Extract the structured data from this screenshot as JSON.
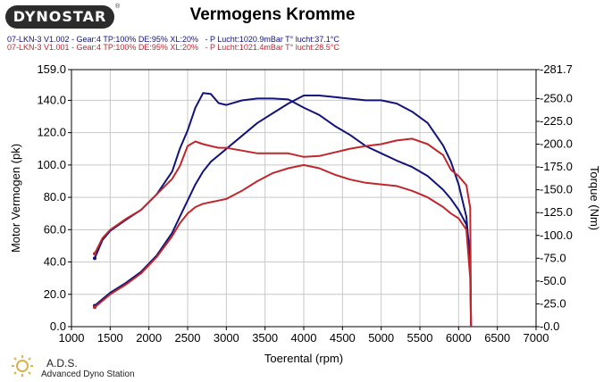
{
  "header": {
    "logo_text": "DYNOSTAR",
    "title": "Vermogens Kromme",
    "runs": [
      "07-LKN-3 V1.002 - Gear:4 TP:100% DE:95% XL:20%   - P Lucht:1020.9mBar T° lucht:37.1°C",
      "07-LKN-3 V1.001 - Gear:4 TP:100% DE:95% XL:20%   - P Lucht:1021.4mBar T° lucht:28.5°C"
    ]
  },
  "footer": {
    "brand": "A.D.S.",
    "subtitle": "Advanced Dyno Station"
  },
  "colors": {
    "run_blue": "#13137a",
    "run_red": "#c0272d",
    "grid": "#c8c8c8"
  },
  "chart_data": {
    "type": "line",
    "title": "Vermogens Kromme",
    "xlabel": "Toerental (rpm)",
    "ylabel": "Motor Vermogen (pk)",
    "y2label": "Torque (Nm)",
    "xlim": [
      1000,
      7000
    ],
    "ylim": [
      0,
      159
    ],
    "y2lim": [
      0,
      281.7
    ],
    "xticks": [
      1000,
      1500,
      2000,
      2500,
      3000,
      3500,
      4000,
      4500,
      5000,
      5500,
      6000,
      6500,
      7000
    ],
    "yticks": [
      0.0,
      20.0,
      40.0,
      60.0,
      80.0,
      100.0,
      120.0,
      140.0,
      159.0
    ],
    "ytick_labels": [
      "0.0",
      "20.0",
      "40.0",
      "60.0",
      "80.0",
      "100.0",
      "120.0",
      "140.0",
      "159.0"
    ],
    "y2ticks": [
      0.0,
      25.0,
      50.0,
      75.0,
      100.0,
      125.0,
      150.0,
      175.0,
      200.0,
      225.0,
      250.0,
      281.7
    ],
    "y2tick_labels": [
      "0.0",
      "25.0",
      "50.0",
      "75.0",
      "100.0",
      "125.0",
      "150.0",
      "175.0",
      "200.0",
      "225.0",
      "250.0",
      "281.7"
    ],
    "grid": true,
    "series": [
      {
        "color": "#13137a",
        "axis": "left",
        "kind": "power",
        "x": [
          1300,
          1400,
          1500,
          1700,
          1900,
          2100,
          2300,
          2400,
          2500,
          2600,
          2700,
          2800,
          2900,
          3000,
          3200,
          3400,
          3600,
          3800,
          4000,
          4200,
          4400,
          4600,
          4800,
          5000,
          5200,
          5400,
          5600,
          5800,
          5900,
          6000,
          6100,
          6150,
          6160
        ],
        "y": [
          13,
          17,
          21,
          27,
          34,
          44,
          58,
          68,
          78,
          88,
          96,
          102,
          106,
          110,
          118,
          126,
          132,
          138,
          143,
          143,
          142,
          141,
          140,
          140,
          138,
          133,
          126,
          112,
          102,
          88,
          68,
          40,
          0
        ]
      },
      {
        "color": "#13137a",
        "axis": "right",
        "kind": "torque",
        "x": [
          1300,
          1400,
          1500,
          1700,
          1900,
          2100,
          2300,
          2400,
          2500,
          2600,
          2700,
          2800,
          2900,
          3000,
          3200,
          3400,
          3600,
          3800,
          4000,
          4200,
          4400,
          4600,
          4800,
          5000,
          5200,
          5400,
          5600,
          5800,
          5900,
          6000,
          6100,
          6150,
          6160
        ],
        "y": [
          75,
          95,
          105,
          117,
          128,
          145,
          170,
          195,
          215,
          240,
          256,
          255,
          245,
          243,
          248,
          250,
          250,
          249,
          240,
          232,
          220,
          210,
          198,
          190,
          182,
          175,
          165,
          150,
          140,
          128,
          112,
          80,
          0
        ]
      },
      {
        "color": "#c0272d",
        "axis": "left",
        "kind": "power",
        "x": [
          1300,
          1400,
          1500,
          1700,
          1900,
          2100,
          2300,
          2400,
          2500,
          2600,
          2700,
          2800,
          2900,
          3000,
          3200,
          3400,
          3600,
          3800,
          4000,
          4200,
          4400,
          4600,
          4800,
          5000,
          5200,
          5400,
          5600,
          5800,
          5900,
          6000,
          6100,
          6150,
          6160
        ],
        "y": [
          12,
          16,
          20,
          26,
          33,
          43,
          56,
          64,
          70,
          74,
          76,
          77,
          78,
          79,
          84,
          90,
          95,
          98,
          100,
          98,
          94,
          91,
          89,
          88,
          87,
          84,
          80,
          74,
          70,
          67,
          60,
          30,
          0
        ]
      },
      {
        "color": "#c0272d",
        "axis": "right",
        "kind": "torque",
        "x": [
          1300,
          1400,
          1500,
          1700,
          1900,
          2100,
          2300,
          2400,
          2500,
          2600,
          2700,
          2800,
          2900,
          3000,
          3200,
          3400,
          3600,
          3800,
          4000,
          4200,
          4400,
          4600,
          4800,
          5000,
          5200,
          5400,
          5600,
          5800,
          5900,
          6000,
          6100,
          6150,
          6160
        ],
        "y": [
          80,
          97,
          106,
          118,
          128,
          145,
          162,
          176,
          198,
          203,
          200,
          198,
          196,
          196,
          193,
          190,
          190,
          190,
          186,
          187,
          191,
          195,
          198,
          200,
          204,
          206,
          200,
          188,
          172,
          165,
          155,
          130,
          0
        ]
      }
    ]
  }
}
